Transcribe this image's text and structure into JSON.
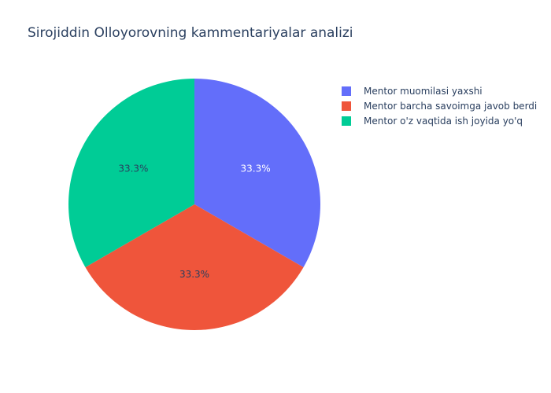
{
  "chart_data": {
    "type": "pie",
    "title": "Sirojiddin Olloyorovning kammentariyalar analizi",
    "labels": [
      "Mentor muomilasi yaxshi",
      "Mentor barcha savoimga javob berdi",
      "Mentor o'z vaqtida ish joyida yo'q"
    ],
    "values": [
      1,
      1,
      1
    ],
    "text_labels": [
      "33.3%",
      "33.3%",
      "33.3%"
    ],
    "colors": [
      "#636efa",
      "#ef553b",
      "#00cc96"
    ],
    "label_colors": [
      "#ffffff",
      "#2a3f5f",
      "#2a3f5f"
    ],
    "legend_position": "top-right"
  }
}
